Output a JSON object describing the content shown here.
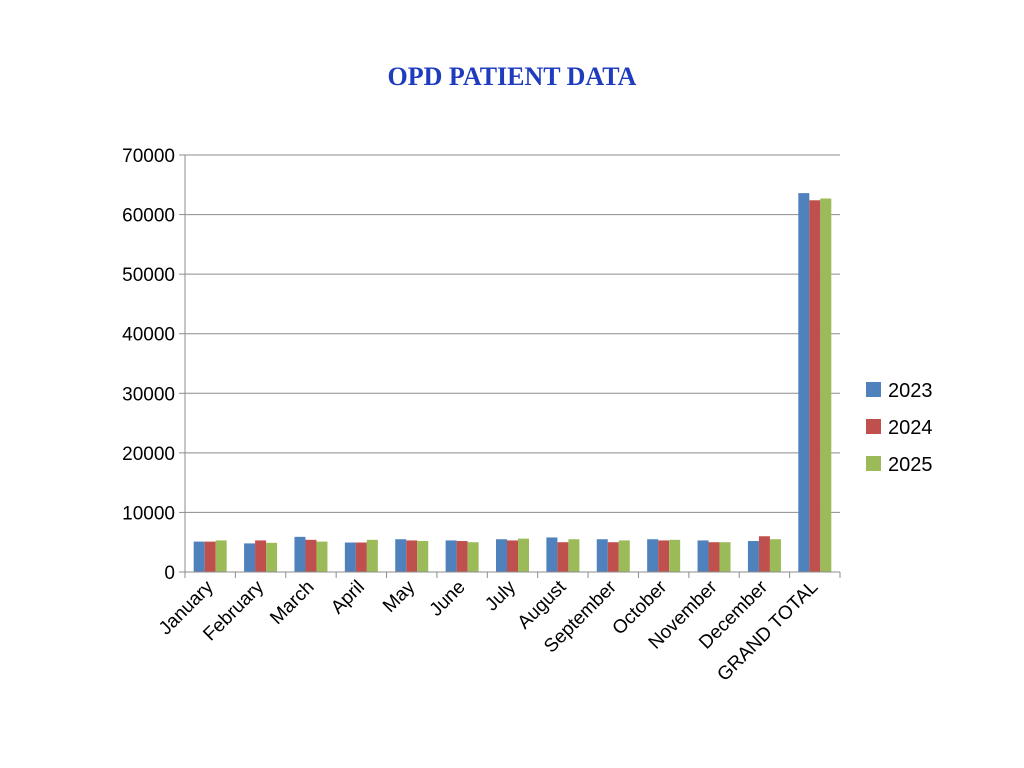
{
  "chart_data": {
    "type": "bar",
    "title": "OPD PATIENT DATA",
    "xlabel": "",
    "ylabel": "",
    "ylim": [
      0,
      70000
    ],
    "yticks": [
      0,
      10000,
      20000,
      30000,
      40000,
      50000,
      60000,
      70000
    ],
    "grid": true,
    "legend_position": "right",
    "categories": [
      "January",
      "February",
      "March",
      "April",
      "May",
      "June",
      "July",
      "August",
      "September",
      "October",
      "November",
      "December",
      "GRAND TOTAL"
    ],
    "series": [
      {
        "name": "2023",
        "color": "#4f81bd",
        "values": [
          5100,
          4800,
          5900,
          4950,
          5500,
          5300,
          5500,
          5800,
          5500,
          5500,
          5300,
          5200,
          63600
        ]
      },
      {
        "name": "2024",
        "color": "#c0504d",
        "values": [
          5100,
          5300,
          5400,
          4950,
          5300,
          5200,
          5300,
          5000,
          5000,
          5300,
          5000,
          6000,
          62400
        ]
      },
      {
        "name": "2025",
        "color": "#9bbb59",
        "values": [
          5300,
          4900,
          5100,
          5400,
          5200,
          5000,
          5600,
          5500,
          5300,
          5400,
          5000,
          5500,
          62700
        ]
      }
    ]
  }
}
